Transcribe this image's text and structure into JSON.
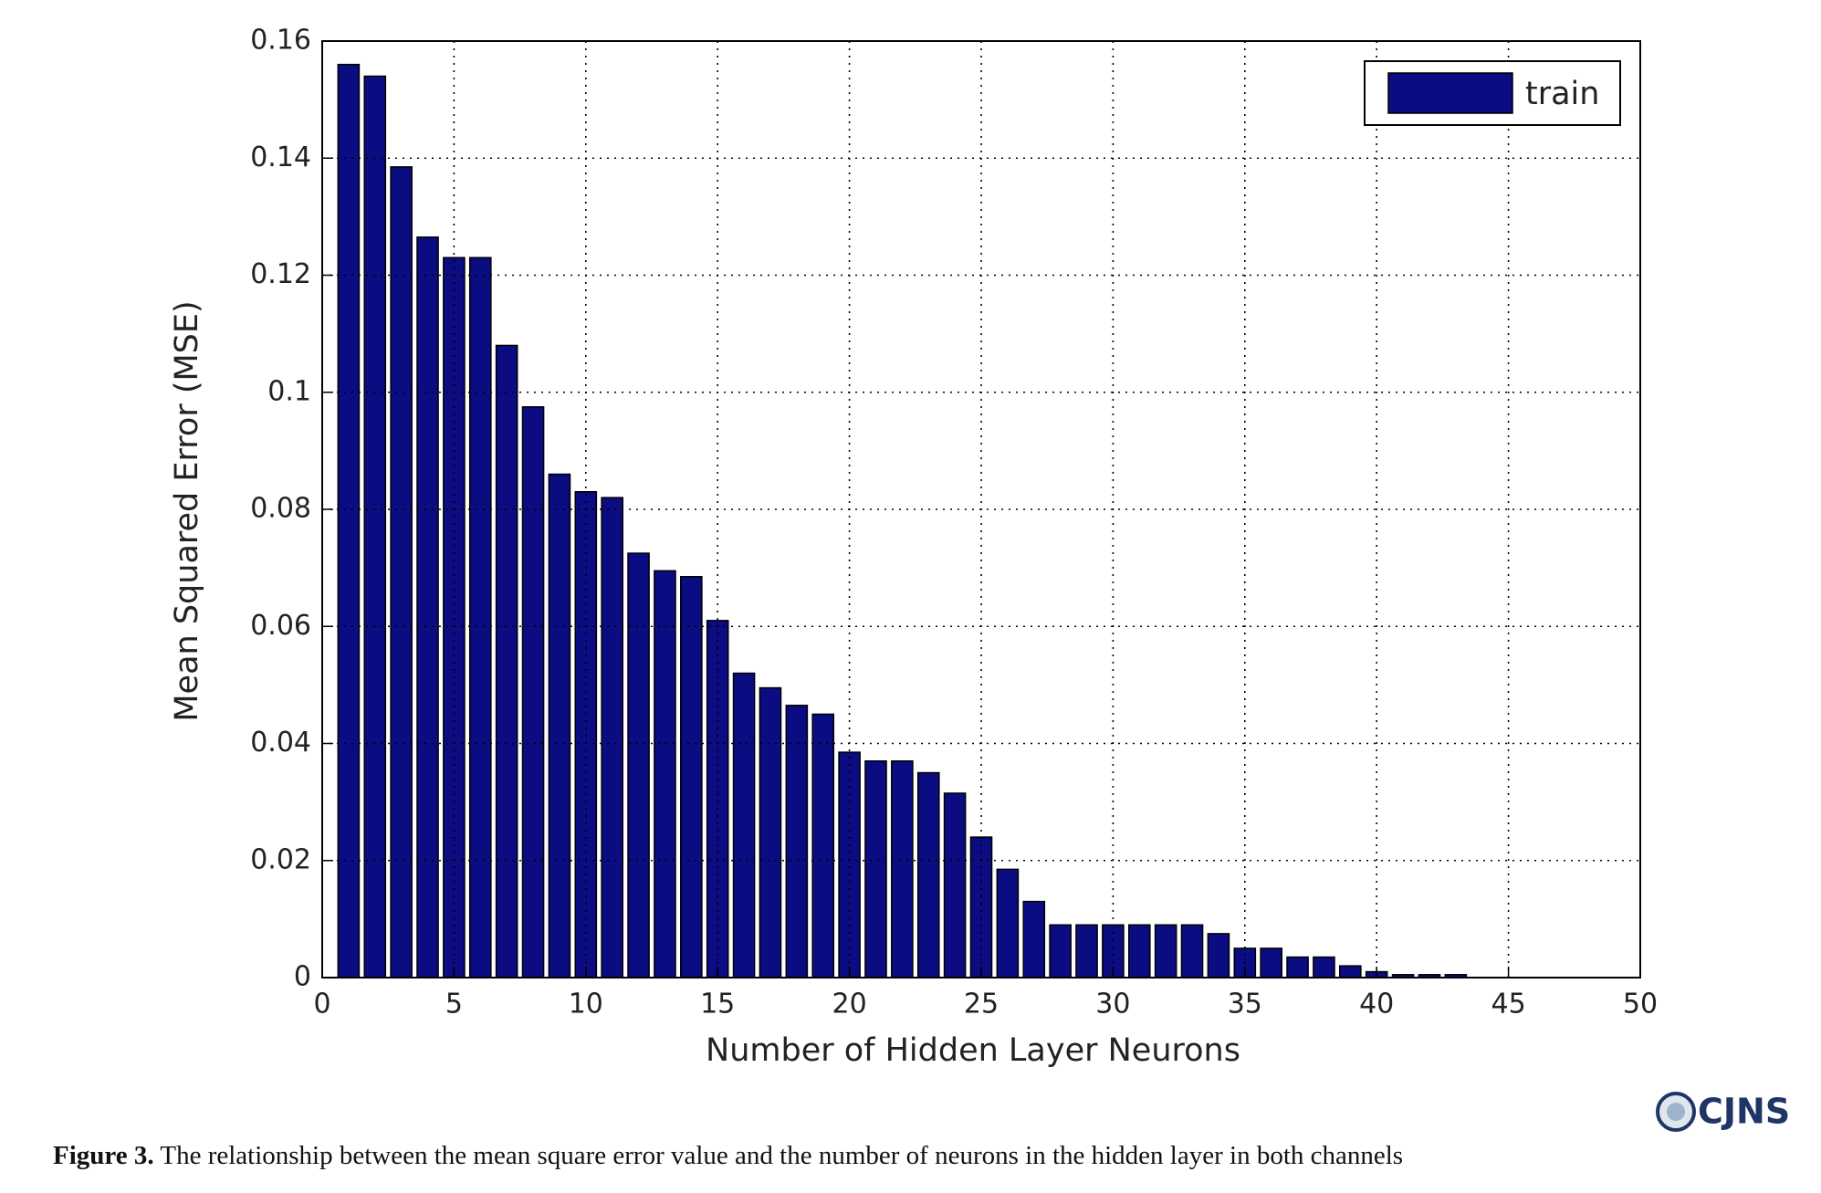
{
  "chart_data": {
    "type": "bar",
    "x": [
      1,
      2,
      3,
      4,
      5,
      6,
      7,
      8,
      9,
      10,
      11,
      12,
      13,
      14,
      15,
      16,
      17,
      18,
      19,
      20,
      21,
      22,
      23,
      24,
      25,
      26,
      27,
      28,
      29,
      30,
      31,
      32,
      33,
      34,
      35,
      36,
      37,
      38,
      39,
      40,
      41,
      42,
      43
    ],
    "series": [
      {
        "name": "train",
        "color": "#0b0b82",
        "values": [
          0.156,
          0.154,
          0.1385,
          0.1265,
          0.123,
          0.123,
          0.108,
          0.0975,
          0.086,
          0.083,
          0.082,
          0.0725,
          0.0695,
          0.0685,
          0.061,
          0.052,
          0.0495,
          0.0465,
          0.045,
          0.0385,
          0.037,
          0.037,
          0.035,
          0.0315,
          0.024,
          0.0185,
          0.013,
          0.009,
          0.009,
          0.009,
          0.009,
          0.009,
          0.009,
          0.0075,
          0.005,
          0.005,
          0.0035,
          0.0035,
          0.002,
          0.001,
          0.0005,
          0.0005,
          0.0005
        ]
      }
    ],
    "xlabel": "Number of Hidden Layer Neurons",
    "ylabel": "Mean Squared Error (MSE)",
    "xlim": [
      0,
      50
    ],
    "xticks": [
      0,
      5,
      10,
      15,
      20,
      25,
      30,
      35,
      40,
      45,
      50
    ],
    "ylim": [
      0,
      0.16
    ],
    "yticks": [
      0,
      0.02,
      0.04,
      0.06,
      0.08,
      0.1,
      0.12,
      0.14,
      0.16
    ],
    "grid": true,
    "legend": "northeast"
  },
  "caption": {
    "label": "Figure 3.",
    "text": "The relationship between the mean square error value and the number of neurons in the hidden layer in both channels"
  },
  "logo": "CJNS"
}
